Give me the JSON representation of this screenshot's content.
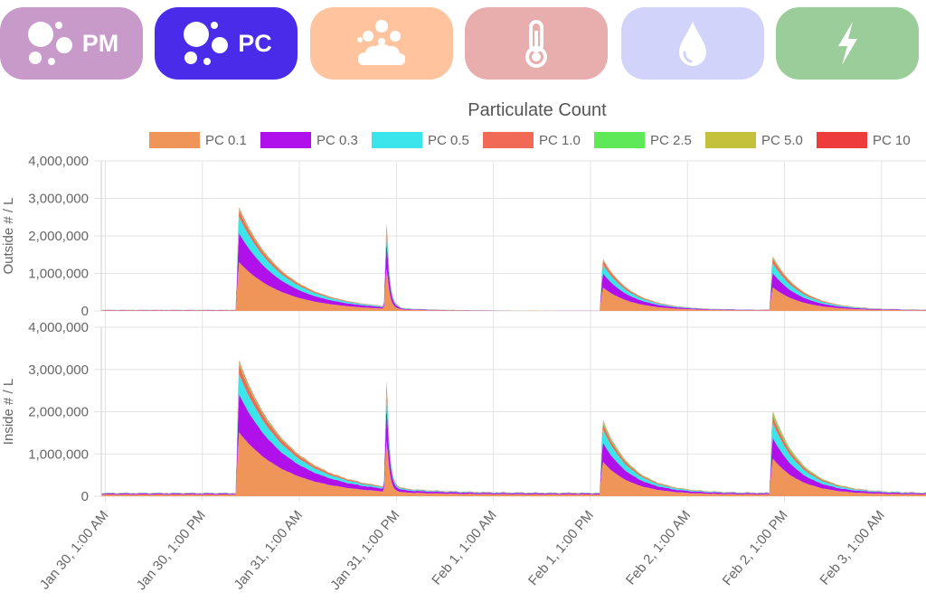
{
  "tabs": [
    {
      "id": "pm",
      "label": "PM",
      "icon": "particles-icon",
      "color": "#c89ac9"
    },
    {
      "id": "pc",
      "label": "PC",
      "icon": "particles-icon",
      "color": "#4a2bea",
      "active": true
    },
    {
      "id": "weather",
      "label": "",
      "icon": "cloud-particles-icon",
      "color": "#ffc49e"
    },
    {
      "id": "temperature",
      "label": "",
      "icon": "thermometer-icon",
      "color": "#e8adad"
    },
    {
      "id": "humidity",
      "label": "",
      "icon": "water-drop-icon",
      "color": "#d2d3fb"
    },
    {
      "id": "power",
      "label": "",
      "icon": "lightning-icon",
      "color": "#9bcd9a"
    }
  ],
  "chart_data": {
    "type": "area",
    "stacked": true,
    "title": "Particulate Count",
    "legend_position": "top",
    "series": [
      {
        "name": "PC 0.1",
        "color": "#f0955a"
      },
      {
        "name": "PC 0.3",
        "color": "#b010ea"
      },
      {
        "name": "PC 0.5",
        "color": "#3be5ec"
      },
      {
        "name": "PC 1.0",
        "color": "#f06a55"
      },
      {
        "name": "PC 2.5",
        "color": "#5fe858"
      },
      {
        "name": "PC 5.0",
        "color": "#c4c23a"
      },
      {
        "name": "PC 10",
        "color": "#ee3c3c"
      }
    ],
    "x_ticks": [
      "Jan 30, 1:00 AM",
      "Jan 30, 1:00 PM",
      "Jan 31, 1:00 AM",
      "Jan 31, 1:00 PM",
      "Feb 1, 1:00 AM",
      "Feb 1, 1:00 PM",
      "Feb 2, 1:00 AM",
      "Feb 2, 1:00 PM",
      "Feb 3, 1:00 AM"
    ],
    "x_range_hours": [
      -0.5,
      101.5
    ],
    "x_tick_hours": [
      0,
      12,
      24,
      36,
      48,
      60,
      72,
      84,
      96
    ],
    "panels": [
      {
        "ylabel": "Outside # / L",
        "ylim": [
          0,
          4000000
        ],
        "yticks": [
          "0",
          "1,000,000",
          "2,000,000",
          "3,000,000",
          "4,000,000"
        ],
        "yvals": [
          0,
          1000000,
          2000000,
          3000000,
          4000000
        ],
        "events": [
          {
            "start_h": 16.5,
            "peak": 2750000,
            "decay_h": 5.5,
            "split": [
              0.47,
              0.28,
              0.16,
              0.06,
              0.01,
              0.01,
              0.01
            ]
          },
          {
            "start_h": 34.8,
            "peak": 2480000,
            "decay_h": 0.35,
            "split": [
              0.48,
              0.3,
              0.14,
              0.06,
              0.01,
              0.005,
              0.005
            ]
          },
          {
            "start_h": 61.5,
            "peak": 1380000,
            "decay_h": 3.5,
            "split": [
              0.45,
              0.27,
              0.17,
              0.08,
              0.01,
              0.01,
              0.01
            ]
          },
          {
            "start_h": 82.5,
            "peak": 1450000,
            "decay_h": 3.5,
            "split": [
              0.43,
              0.26,
              0.18,
              0.09,
              0.02,
              0.01,
              0.01
            ]
          }
        ],
        "baseline": 30000,
        "gap_h": [
          36.5,
          61.5
        ],
        "gap_baseline": 5000
      },
      {
        "ylabel": "Inside # / L",
        "ylim": [
          0,
          4000000
        ],
        "yticks": [
          "0",
          "1,000,000",
          "2,000,000",
          "3,000,000",
          "4,000,000"
        ],
        "yvals": [
          0,
          1000000,
          2000000,
          3000000,
          4000000
        ],
        "events": [
          {
            "start_h": 16.5,
            "peak": 3150000,
            "decay_h": 6.0,
            "split": [
              0.47,
              0.28,
              0.15,
              0.07,
              0.01,
              0.01,
              0.01
            ]
          },
          {
            "start_h": 34.8,
            "peak": 2800000,
            "decay_h": 0.35,
            "split": [
              0.48,
              0.29,
              0.15,
              0.06,
              0.01,
              0.005,
              0.005
            ]
          },
          {
            "start_h": 61.5,
            "peak": 1750000,
            "decay_h": 3.5,
            "split": [
              0.45,
              0.25,
              0.18,
              0.07,
              0.03,
              0.01,
              0.01
            ]
          },
          {
            "start_h": 82.5,
            "peak": 1970000,
            "decay_h": 3.5,
            "split": [
              0.44,
              0.24,
              0.18,
              0.08,
              0.04,
              0.01,
              0.01
            ]
          }
        ],
        "baseline": 80000,
        "gap_h": null,
        "gap_baseline": 80000
      }
    ]
  }
}
